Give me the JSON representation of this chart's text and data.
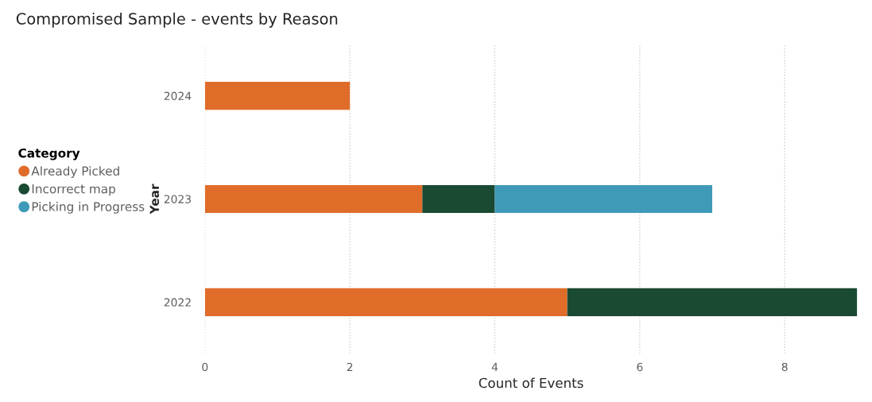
{
  "chart_data": {
    "type": "bar",
    "title": "Compromised Sample - events by Reason",
    "xlabel": "Count of Events",
    "ylabel": "Year",
    "legend_title": "Category",
    "orientation": "horizontal",
    "stacked": true,
    "categories": [
      "2024",
      "2023",
      "2022"
    ],
    "series": [
      {
        "name": "Already Picked",
        "color": "#e06c2a",
        "values": [
          2,
          3,
          5
        ]
      },
      {
        "name": "Incorrect map",
        "color": "#1a4a32",
        "values": [
          null,
          1,
          4
        ]
      },
      {
        "name": "Picking in Progress",
        "color": "#3f9ab8",
        "values": [
          null,
          3,
          null
        ]
      }
    ],
    "xlim": [
      0,
      9
    ],
    "xticks": [
      0,
      2,
      4,
      6,
      8
    ],
    "grid": "x",
    "legend": "left",
    "marker": "circle"
  }
}
